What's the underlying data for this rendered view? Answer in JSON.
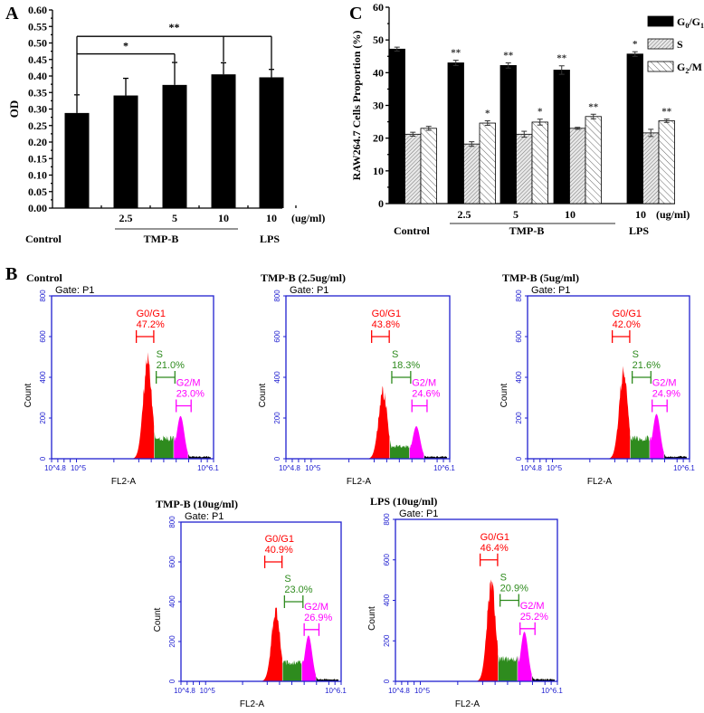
{
  "panel_letters": {
    "a": "A",
    "b": "B",
    "c": "C"
  },
  "chart_data": [
    {
      "id": "A",
      "type": "bar",
      "ylabel": "OD",
      "ylim": [
        0,
        0.6
      ],
      "yticks": [
        "0.00",
        "0.05",
        "0.10",
        "0.15",
        "0.20",
        "0.25",
        "0.30",
        "0.35",
        "0.40",
        "0.45",
        "0.50",
        "0.55",
        "0.60"
      ],
      "categories": [
        "",
        "2.5",
        "5",
        "10",
        "10"
      ],
      "unit_label": "(ug/ml)",
      "groups": [
        {
          "label": "Control",
          "span": [
            0,
            0
          ]
        },
        {
          "label": "TMP-B",
          "span": [
            1,
            3
          ]
        },
        {
          "label": "LPS",
          "span": [
            4,
            4
          ]
        }
      ],
      "values": [
        0.288,
        0.341,
        0.373,
        0.405,
        0.396
      ],
      "errors": [
        0.055,
        0.052,
        0.068,
        0.035,
        0.024
      ],
      "bar_color": "#000000",
      "significance": [
        {
          "from": 0,
          "to": [
            2
          ],
          "label": "*"
        },
        {
          "from": 0,
          "to": [
            3,
            4
          ],
          "label": "**"
        }
      ]
    },
    {
      "id": "C",
      "type": "bar",
      "ylabel": "RAW264.7 Cells Proportion (%)",
      "ylim": [
        0,
        60
      ],
      "yticks": [
        "0",
        "10",
        "20",
        "30",
        "40",
        "50",
        "60"
      ],
      "categories": [
        "",
        "2.5",
        "5",
        "10",
        "10"
      ],
      "unit_label": "(ug/ml)",
      "groups": [
        {
          "label": "Control",
          "span": [
            0,
            0
          ]
        },
        {
          "label": "TMP-B",
          "span": [
            1,
            3
          ]
        },
        {
          "label": "LPS",
          "span": [
            4,
            4
          ]
        }
      ],
      "legend_position": "top-right",
      "series": [
        {
          "name": "G0/G1",
          "name_main": "G",
          "sub1": "0",
          "mid": "/G",
          "sub2": "1",
          "fill": "solid",
          "values": [
            47.2,
            43.0,
            42.2,
            40.8,
            45.7
          ],
          "errors": [
            0.6,
            0.8,
            0.8,
            1.3,
            0.7
          ],
          "stars": [
            "",
            "**",
            "**",
            "**",
            "*"
          ]
        },
        {
          "name": "S",
          "name_main": "S",
          "sub1": "",
          "mid": "",
          "sub2": "",
          "fill": "dense-hatch",
          "values": [
            21.2,
            18.2,
            21.2,
            23.0,
            21.6
          ],
          "errors": [
            0.6,
            0.7,
            0.9,
            0.3,
            1.1
          ],
          "stars": [
            "",
            "",
            "",
            "",
            ""
          ]
        },
        {
          "name": "G2/M",
          "name_main": "G",
          "sub1": "2",
          "mid": "/M",
          "sub2": "",
          "fill": "wide-hatch",
          "values": [
            23.0,
            24.6,
            24.9,
            26.6,
            25.3
          ],
          "errors": [
            0.6,
            0.7,
            0.9,
            0.7,
            0.5
          ],
          "stars": [
            "",
            "*",
            "*",
            "**",
            "**"
          ]
        }
      ]
    },
    {
      "id": "B",
      "type": "histogram",
      "gate_label": "Gate: P1",
      "xlabel": "FL2-A",
      "ylabel": "Count",
      "ylim": [
        0,
        800
      ],
      "yticks": [
        "0",
        "200",
        "400",
        "600",
        "800"
      ],
      "xlim_log10": [
        4.8,
        6.1
      ],
      "xtick_labels": [
        "10^4.8",
        "10^5",
        "10^6.1"
      ],
      "phase_colors": {
        "G0/G1": "#ff0000",
        "S": "#2e8b1e",
        "G2/M": "#ff00ff",
        "debris": "#000000"
      },
      "axis_color": "#2020d0",
      "plots": [
        {
          "title": "Control",
          "gates": [
            {
              "label": "G0/G1",
              "pct": "47.2%"
            },
            {
              "label": "S",
              "pct": "21.0%"
            },
            {
              "label": "G2/M",
              "pct": "23.0%"
            }
          ],
          "g1_peak": 480,
          "g2_peak": 210,
          "s_level": 100
        },
        {
          "title": "TMP-B (2.5ug/ml)",
          "gates": [
            {
              "label": "G0/G1",
              "pct": "43.8%"
            },
            {
              "label": "S",
              "pct": "18.3%"
            },
            {
              "label": "G2/M",
              "pct": "24.6%"
            }
          ],
          "g1_peak": 330,
          "g2_peak": 160,
          "s_level": 60
        },
        {
          "title": "TMP-B (5ug/ml)",
          "gates": [
            {
              "label": "G0/G1",
              "pct": "42.0%"
            },
            {
              "label": "S",
              "pct": "21.6%"
            },
            {
              "label": "G2/M",
              "pct": "24.9%"
            }
          ],
          "g1_peak": 420,
          "g2_peak": 220,
          "s_level": 100
        },
        {
          "title": "TMP-B (10ug/ml)",
          "gates": [
            {
              "label": "G0/G1",
              "pct": "40.9%"
            },
            {
              "label": "S",
              "pct": "23.0%"
            },
            {
              "label": "G2/M",
              "pct": "26.9%"
            }
          ],
          "g1_peak": 350,
          "g2_peak": 230,
          "s_level": 95
        },
        {
          "title": "LPS (10ug/ml)",
          "gates": [
            {
              "label": "G0/G1",
              "pct": "46.4%"
            },
            {
              "label": "S",
              "pct": "20.9%"
            },
            {
              "label": "G2/M",
              "pct": "25.2%"
            }
          ],
          "g1_peak": 480,
          "g2_peak": 245,
          "s_level": 110
        }
      ]
    }
  ]
}
